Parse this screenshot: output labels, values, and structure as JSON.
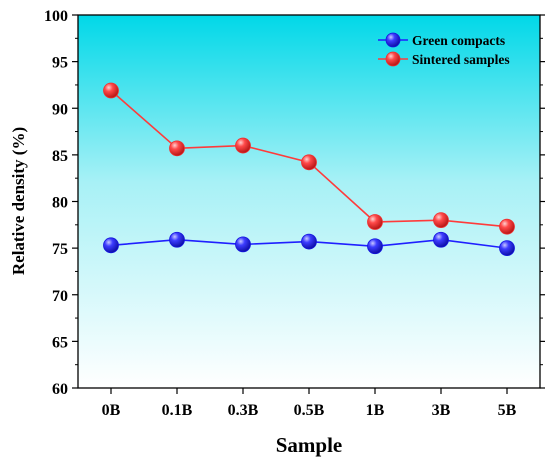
{
  "chart_data": {
    "type": "line",
    "title": "",
    "xlabel": "Sample",
    "ylabel": "Relative density (%)",
    "categories": [
      "0B",
      "0.1B",
      "0.3B",
      "0.5B",
      "1B",
      "3B",
      "5B"
    ],
    "ylim": [
      60,
      100
    ],
    "yticks": [
      "60",
      "65",
      "70",
      "75",
      "80",
      "85",
      "90",
      "95",
      "100"
    ],
    "grid": false,
    "legend_position": "top-right",
    "background_gradient": [
      "#00d8e8",
      "#ffffff"
    ],
    "series": [
      {
        "name": "Green compacts",
        "values": [
          75.3,
          75.9,
          75.4,
          75.7,
          75.2,
          75.9,
          75.0
        ],
        "line_color": "#1f1fff",
        "marker_color": "#1515e0"
      },
      {
        "name": "Sintered samples",
        "values": [
          91.9,
          85.7,
          86.0,
          84.2,
          77.8,
          78.0,
          77.3
        ],
        "line_color": "#ff3b3b",
        "marker_color": "#f03030"
      }
    ]
  }
}
